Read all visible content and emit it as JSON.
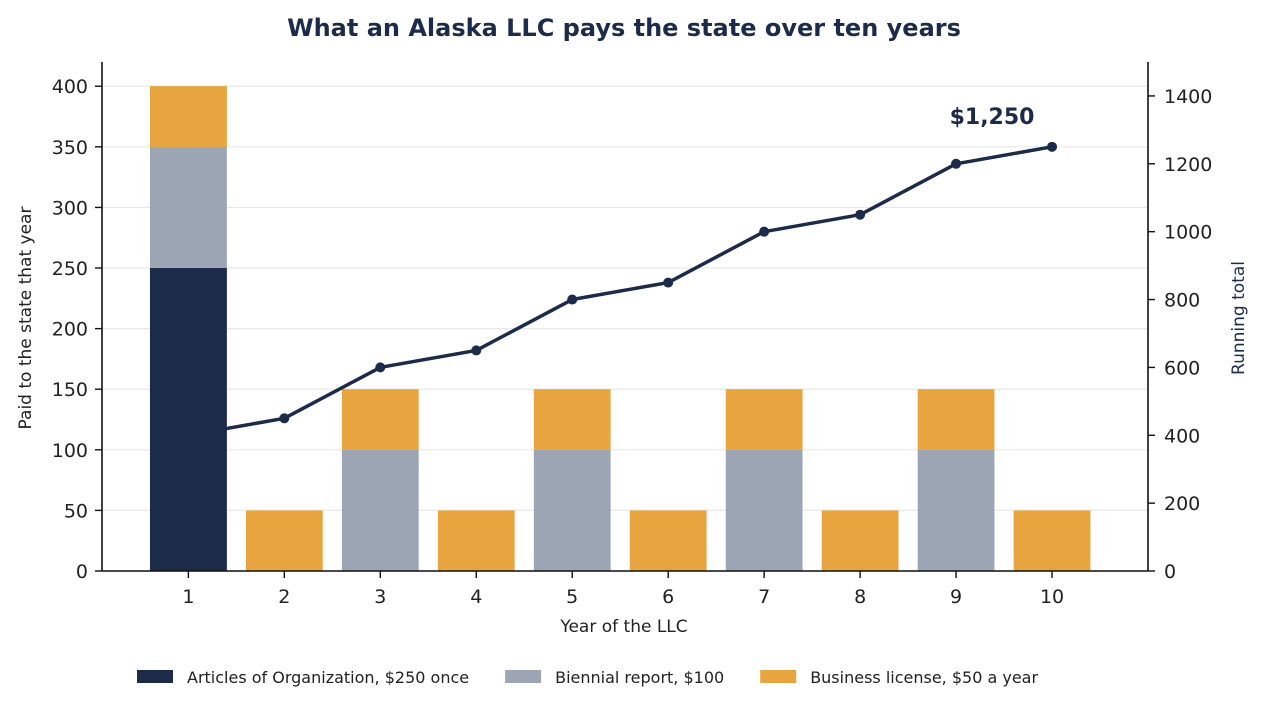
{
  "chart_data": {
    "type": "bar",
    "title": "What an Alaska LLC pays the state over ten years",
    "xlabel": "Year of the LLC",
    "ylabel": "Paid to the state that year",
    "ylabel_right": "Running total",
    "categories": [
      "1",
      "2",
      "3",
      "4",
      "5",
      "6",
      "7",
      "8",
      "9",
      "10"
    ],
    "ylim": [
      0,
      420
    ],
    "yticks": [
      0,
      50,
      100,
      150,
      200,
      250,
      300,
      350,
      400
    ],
    "ylim_right": [
      0,
      1500
    ],
    "yticks_right": [
      0,
      200,
      400,
      600,
      800,
      1000,
      1200,
      1400
    ],
    "grid": true,
    "legend_position": "bottom",
    "series": [
      {
        "name": "Articles of Organization, $250 once",
        "color": "#1d2b4b",
        "values": [
          250,
          0,
          0,
          0,
          0,
          0,
          0,
          0,
          0,
          0
        ]
      },
      {
        "name": "Biennial report, $100",
        "color": "#9ba5b3",
        "values": [
          100,
          0,
          100,
          0,
          100,
          0,
          100,
          0,
          100,
          0
        ]
      },
      {
        "name": "Business license, $50 a year",
        "color": "#e8a43e",
        "values": [
          50,
          50,
          50,
          50,
          50,
          50,
          50,
          50,
          50,
          50
        ]
      }
    ],
    "line_series": {
      "axis": "right",
      "color": "#1d2b4b",
      "values": [
        400,
        450,
        600,
        650,
        800,
        850,
        1000,
        1050,
        1200,
        1250
      ]
    },
    "annotation": {
      "text": "$1,250",
      "x": "10",
      "y": 1250
    }
  }
}
